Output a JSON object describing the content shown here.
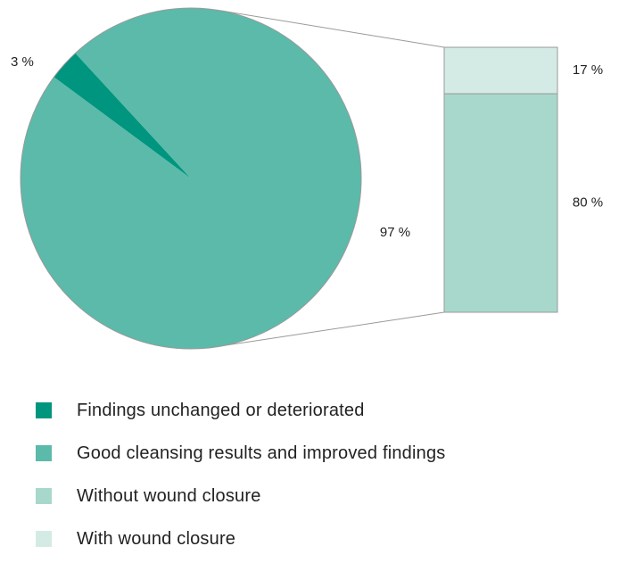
{
  "chart_data": {
    "type": "pie",
    "title": "",
    "pie": {
      "slices": [
        {
          "label": "Findings unchanged or deteriorated",
          "value": 3,
          "display": "3 %",
          "color": "#00957f"
        },
        {
          "label": "Good cleansing results and improved findings",
          "value": 97,
          "display": "97 %",
          "color": "#5bbaa9"
        }
      ]
    },
    "breakdown": {
      "of": "Good cleansing results and improved findings",
      "segments": [
        {
          "label": "Without wound closure",
          "value": 80,
          "display": "80 %",
          "color": "#a8d8cc"
        },
        {
          "label": "With wound closure",
          "value": 17,
          "display": "17 %",
          "color": "#d4ebe5"
        }
      ]
    },
    "legend": {
      "position": "bottom-left",
      "items": [
        {
          "label": "Findings unchanged or deteriorated",
          "color": "#00957f"
        },
        {
          "label": "Good cleansing results and improved findings",
          "color": "#5bbaa9"
        },
        {
          "label": "Without wound closure",
          "color": "#a8d8cc"
        },
        {
          "label": "With wound closure",
          "color": "#d4ebe5"
        }
      ]
    }
  }
}
